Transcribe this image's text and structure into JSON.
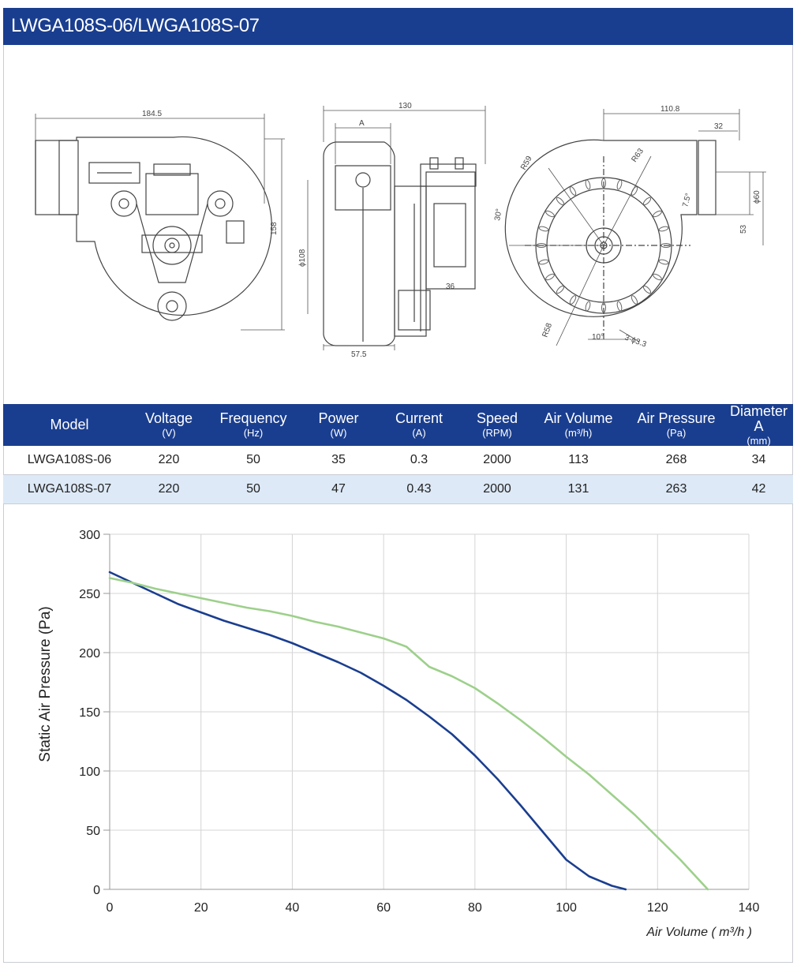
{
  "header": {
    "title": "LWGA108S-06/LWGA108S-07"
  },
  "drawing": {
    "dims": {
      "left_width": "184.5",
      "left_height": "158",
      "mid_width": "130",
      "mid_a": "A",
      "mid_dia": "ϕ108",
      "mid_bottom": "57.5",
      "mid_36": "36",
      "right_width": "110.8",
      "right_32": "32",
      "right_60": "ϕ60",
      "right_53": "53",
      "r63": "R63",
      "r59": "R59",
      "r58": "R58",
      "a30": "30°",
      "a10": "10°",
      "a75": "7.5°",
      "holes": "3-ϕ3.3"
    }
  },
  "table": {
    "headers": [
      {
        "label": "Model",
        "unit": ""
      },
      {
        "label": "Voltage",
        "unit": "(V)"
      },
      {
        "label": "Frequency",
        "unit": "(Hz)"
      },
      {
        "label": "Power",
        "unit": "(W)"
      },
      {
        "label": "Current",
        "unit": "(A)"
      },
      {
        "label": "Speed",
        "unit": "(RPM)"
      },
      {
        "label": "Air Volume",
        "unit": "(m³/h)"
      },
      {
        "label": "Air Pressure",
        "unit": "(Pa)"
      },
      {
        "label": "Diameter A",
        "unit": "(mm)"
      }
    ],
    "rows": [
      [
        "LWGA108S-06",
        "220",
        "50",
        "35",
        "0.3",
        "2000",
        "113",
        "268",
        "34"
      ],
      [
        "LWGA108S-07",
        "220",
        "50",
        "47",
        "0.43",
        "2000",
        "131",
        "263",
        "42"
      ]
    ]
  },
  "chart_data": {
    "type": "line",
    "title": "",
    "xlabel": "Air Volume ( m³/h )",
    "ylabel": "Static Air Pressure  (Pa)",
    "xlim": [
      0,
      140
    ],
    "ylim": [
      0,
      300
    ],
    "xticks": [
      "0",
      "20",
      "40",
      "60",
      "80",
      "100",
      "120",
      "140"
    ],
    "yticks": [
      "0",
      "50",
      "100",
      "150",
      "200",
      "250",
      "300"
    ],
    "grid": true,
    "legend": "none",
    "series": [
      {
        "color": "#1a3e8f",
        "x": [
          0,
          5,
          10,
          15,
          20,
          25,
          30,
          35,
          40,
          45,
          50,
          55,
          60,
          65,
          70,
          75,
          80,
          85,
          90,
          95,
          100,
          105,
          110,
          113
        ],
        "y": [
          268,
          259,
          250,
          241,
          234,
          227,
          221,
          215,
          208,
          200,
          192,
          183,
          172,
          160,
          146,
          131,
          113,
          93,
          71,
          48,
          25,
          11,
          3,
          0
        ]
      },
      {
        "color": "#9dd08b",
        "x": [
          0,
          5,
          10,
          15,
          20,
          25,
          30,
          35,
          40,
          45,
          50,
          55,
          60,
          65,
          70,
          75,
          80,
          85,
          90,
          95,
          100,
          105,
          110,
          115,
          120,
          125,
          131
        ],
        "y": [
          263,
          259,
          254,
          250,
          246,
          242,
          238,
          235,
          231,
          226,
          222,
          217,
          212,
          205,
          188,
          180,
          170,
          157,
          143,
          128,
          112,
          97,
          80,
          63,
          44,
          25,
          0
        ]
      }
    ]
  }
}
